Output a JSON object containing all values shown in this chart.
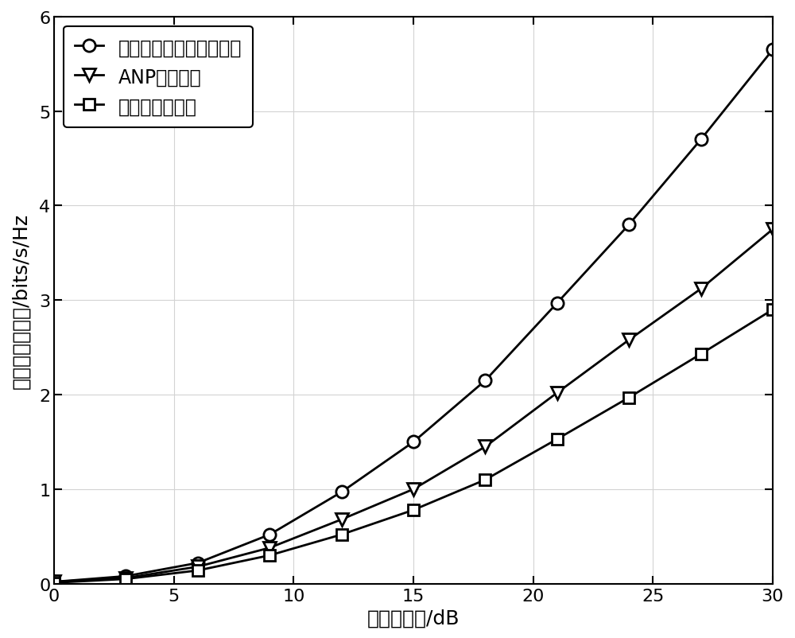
{
  "x": [
    0,
    3,
    6,
    9,
    12,
    15,
    18,
    21,
    24,
    27,
    30
  ],
  "series1_y": [
    0.02,
    0.08,
    0.22,
    0.52,
    0.97,
    1.5,
    2.15,
    2.97,
    3.8,
    4.7,
    5.65
  ],
  "series2_y": [
    0.02,
    0.06,
    0.18,
    0.38,
    0.68,
    1.0,
    1.45,
    2.02,
    2.58,
    3.12,
    3.75
  ],
  "series3_y": [
    0.01,
    0.05,
    0.14,
    0.3,
    0.52,
    0.78,
    1.1,
    1.53,
    1.97,
    2.43,
    2.9
  ],
  "label1": "所提出的联合预编码方案",
  "label2": "ANP传输方案",
  "label3": "最大比发送方案",
  "xlabel": "发送总功率/dB",
  "ylabel": "系统安全和速率/bits/s/Hz",
  "xlim": [
    0,
    30
  ],
  "ylim": [
    0,
    6
  ],
  "xticks": [
    0,
    5,
    10,
    15,
    20,
    25,
    30
  ],
  "yticks": [
    0,
    1,
    2,
    3,
    4,
    5,
    6
  ],
  "line_color": "#000000",
  "background_color": "#ffffff",
  "grid_color": "#d3d3d3"
}
